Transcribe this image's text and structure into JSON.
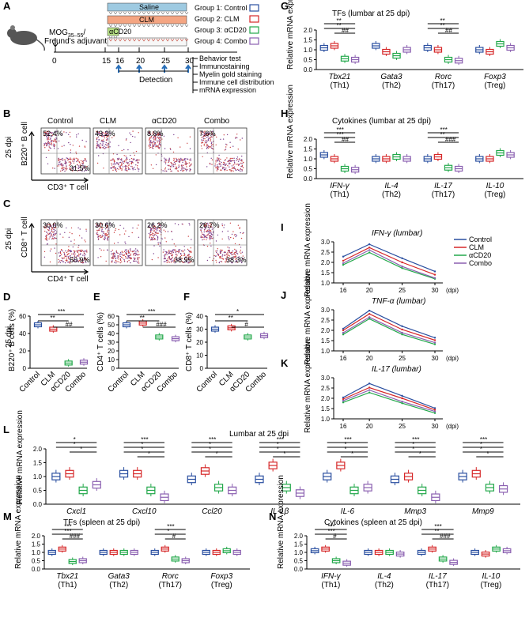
{
  "colors": {
    "Control": "#2a4fa0",
    "CLM": "#d62728",
    "aCD20": "#22a84a",
    "Combo": "#8a5fb0",
    "flow_red": "#c0392b"
  },
  "panels": {
    "A": "A",
    "B": "B",
    "C": "C",
    "D": "D",
    "E": "E",
    "F": "F",
    "G": "G",
    "H": "H",
    "I": "I",
    "J": "J",
    "K": "K",
    "L": "L",
    "M": "M",
    "N": "N"
  },
  "panelA": {
    "induction": "MOG",
    "induction_sub": "35–55",
    "adjuvant": "Freund's adjuvant",
    "days": [
      "0",
      "15",
      "16",
      "20",
      "25",
      "30"
    ],
    "bars": [
      "Saline",
      "CLM",
      "αCD20"
    ],
    "groups": [
      "Group 1: Control",
      "Group 2: CLM",
      "Group 3: αCD20",
      "Group 4: Combo"
    ],
    "detection": "Detection",
    "assays": [
      "Behavior test",
      "Immunostaining",
      "Myelin gold staining",
      "Immune cell distribution",
      "mRNA expression"
    ]
  },
  "flow": {
    "groups": [
      "Control",
      "CLM",
      "αCD20",
      "Combo"
    ],
    "dpi_label": "25 dpi",
    "B": {
      "ylabel": "B220⁺ B cell",
      "xlabel": "CD3⁺ T cell",
      "ul": [
        "52.4%",
        "43.2%",
        "8.8%",
        "7.6%"
      ],
      "lr": [
        "31.5%",
        "",
        "",
        ""
      ]
    },
    "C": {
      "ylabel": "CD8⁺ T cell",
      "xlabel": "CD4⁺ T cell",
      "ul": [
        "30.0%",
        "30.6%",
        "26.2%",
        "26.7%"
      ],
      "lr": [
        "50.9%",
        "",
        "38.9%",
        "38.3%"
      ]
    }
  },
  "chart_data": [
    {
      "id": "D",
      "type": "box",
      "title": "25 dpi",
      "ylabel": "B220⁺ B cells (%)",
      "ylim": [
        0,
        60
      ],
      "yticks": [
        "0",
        "20",
        "40",
        "60"
      ],
      "categories": [
        "Control",
        "CLM",
        "αCD20",
        "Combo"
      ],
      "medians": [
        50,
        45,
        6,
        7
      ],
      "sig": [
        {
          "label": "***",
          "from": 0,
          "to": 3
        },
        {
          "label": "**",
          "from": 0,
          "to": 2
        },
        {
          "label": "##",
          "from": 1,
          "to": 3
        }
      ]
    },
    {
      "id": "E",
      "type": "box",
      "ylabel": "CD4⁺ T cells (%)",
      "ylim": [
        0,
        60
      ],
      "yticks": [
        "0",
        "10",
        "20",
        "30",
        "40",
        "50",
        "60"
      ],
      "categories": [
        "Control",
        "CLM",
        "αCD20",
        "Combo"
      ],
      "medians": [
        50,
        52,
        36,
        34
      ],
      "sig": [
        {
          "label": "***",
          "from": 0,
          "to": 3
        },
        {
          "label": "**",
          "from": 0,
          "to": 2
        },
        {
          "label": "###",
          "from": 1,
          "to": 3
        }
      ]
    },
    {
      "id": "F",
      "type": "box",
      "ylabel": "CD8⁺ T cells (%)",
      "ylim": [
        0,
        40
      ],
      "yticks": [
        "0",
        "10",
        "20",
        "30",
        "40"
      ],
      "categories": [
        "Control",
        "CLM",
        "αCD20",
        "Combo"
      ],
      "medians": [
        30,
        31,
        24,
        25
      ],
      "sig": [
        {
          "label": "*",
          "from": 0,
          "to": 3
        },
        {
          "label": "**",
          "from": 0,
          "to": 2
        },
        {
          "label": "#",
          "from": 1,
          "to": 3
        }
      ]
    },
    {
      "id": "G",
      "type": "grouped-box",
      "title": "TFs (lumbar at 25 dpi)",
      "ylabel": "Relative mRNA expression",
      "ylim": [
        0,
        2.0
      ],
      "yticks": [
        "0.0",
        "0.5",
        "1.0",
        "1.5",
        "2.0"
      ],
      "genes": [
        "Tbx21",
        "Gata3",
        "Rorc",
        "Foxp3"
      ],
      "subs": [
        "(Th1)",
        "(Th2)",
        "(Th17)",
        "(Treg)"
      ],
      "series": [
        {
          "name": "Control",
          "values": [
            1.1,
            1.2,
            1.1,
            1.0
          ]
        },
        {
          "name": "CLM",
          "values": [
            1.2,
            0.9,
            1.0,
            0.9
          ]
        },
        {
          "name": "αCD20",
          "values": [
            0.55,
            0.7,
            0.5,
            1.3
          ]
        },
        {
          "name": "Combo",
          "values": [
            0.5,
            1.0,
            0.45,
            1.1
          ]
        }
      ],
      "sig": [
        {
          "gene": 0,
          "labels": [
            "**",
            "**",
            "##"
          ]
        },
        {
          "gene": 2,
          "labels": [
            "**",
            "**",
            "##"
          ]
        }
      ]
    },
    {
      "id": "H",
      "type": "grouped-box",
      "title": "Cytokines (lumbar at 25 dpi)",
      "ylabel": "Relative mRNA expression",
      "ylim": [
        0,
        2.0
      ],
      "yticks": [
        "0.0",
        "0.5",
        "1.0",
        "1.5",
        "2.0"
      ],
      "genes": [
        "IFN-γ",
        "IL-4",
        "IL-17",
        "IL-10"
      ],
      "subs": [
        "(Th1)",
        "(Th2)",
        "(Th17)",
        "(Treg)"
      ],
      "series": [
        {
          "name": "Control",
          "values": [
            1.2,
            1.0,
            1.0,
            1.0
          ]
        },
        {
          "name": "CLM",
          "values": [
            1.0,
            1.0,
            1.1,
            1.0
          ]
        },
        {
          "name": "αCD20",
          "values": [
            0.5,
            1.1,
            0.55,
            1.3
          ]
        },
        {
          "name": "Combo",
          "values": [
            0.45,
            1.0,
            0.5,
            1.2
          ]
        }
      ],
      "sig": [
        {
          "gene": 0,
          "labels": [
            "***",
            "***",
            "##"
          ]
        },
        {
          "gene": 2,
          "labels": [
            "***",
            "**",
            "###"
          ]
        }
      ]
    },
    {
      "id": "I",
      "type": "line",
      "title": "IFN-γ (lumbar)",
      "ylabel": "Relative mRNA expression",
      "ylim": [
        0.5,
        3.0
      ],
      "yticks": [
        "1.0",
        "1.5",
        "2.0",
        "2.5",
        "3.0"
      ],
      "x": [
        16,
        20,
        25,
        30
      ],
      "xticks": [
        "16",
        "20",
        "25",
        "30"
      ],
      "xunit": "(dpi)",
      "series": [
        {
          "name": "Control",
          "values": [
            2.1,
            2.85,
            2.0,
            1.2
          ]
        },
        {
          "name": "CLM",
          "values": [
            1.85,
            2.65,
            1.75,
            1.0
          ]
        },
        {
          "name": "αCD20",
          "values": [
            1.6,
            2.35,
            1.4,
            0.75
          ]
        },
        {
          "name": "Combo",
          "values": [
            1.7,
            2.5,
            1.5,
            0.8
          ]
        }
      ]
    },
    {
      "id": "J",
      "type": "line",
      "title": "TNF-α (lumbar)",
      "ylabel": "Relative mRNA expression",
      "ylim": [
        0.5,
        3.0
      ],
      "yticks": [
        "1.0",
        "1.5",
        "2.0",
        "2.5",
        "3.0"
      ],
      "x": [
        16,
        20,
        25,
        30
      ],
      "xticks": [
        "16",
        "20",
        "25",
        "30"
      ],
      "xunit": "(dpi)",
      "series": [
        {
          "name": "Control",
          "values": [
            1.85,
            2.95,
            2.0,
            1.3
          ]
        },
        {
          "name": "CLM",
          "values": [
            1.75,
            2.75,
            1.8,
            1.15
          ]
        },
        {
          "name": "αCD20",
          "values": [
            1.5,
            2.45,
            1.5,
            0.9
          ]
        },
        {
          "name": "Combo",
          "values": [
            1.6,
            2.55,
            1.6,
            1.0
          ]
        }
      ]
    },
    {
      "id": "K",
      "type": "line",
      "title": "IL-17 (lumbar)",
      "ylabel": "Relative mRNA expression",
      "ylim": [
        0.5,
        3.0
      ],
      "yticks": [
        "1.0",
        "1.5",
        "2.0",
        "2.5",
        "3.0"
      ],
      "x": [
        16,
        20,
        25,
        30
      ],
      "xticks": [
        "16",
        "20",
        "25",
        "30"
      ],
      "xunit": "(dpi)",
      "series": [
        {
          "name": "Control",
          "values": [
            1.8,
            2.65,
            1.9,
            1.15
          ]
        },
        {
          "name": "CLM",
          "values": [
            1.7,
            2.4,
            1.75,
            1.05
          ]
        },
        {
          "name": "αCD20",
          "values": [
            1.5,
            2.1,
            1.45,
            0.85
          ]
        },
        {
          "name": "Combo",
          "values": [
            1.6,
            2.25,
            1.55,
            0.95
          ]
        }
      ]
    },
    {
      "id": "L",
      "type": "grouped-box",
      "title": "Lumbar at 25 dpi",
      "ylabel": "Relative mRNA expression",
      "ylim": [
        0,
        2.0
      ],
      "yticks": [
        "0.0",
        "0.5",
        "1.0",
        "1.5",
        "2.0"
      ],
      "genes": [
        "Cxcl1",
        "Cxcl10",
        "Ccl20",
        "IL-1β",
        "IL-6",
        "Mmp3",
        "Mmp9"
      ],
      "subs": [],
      "series": [
        {
          "name": "Control",
          "values": [
            1.0,
            1.1,
            0.9,
            0.9,
            1.0,
            0.9,
            1.0
          ]
        },
        {
          "name": "CLM",
          "values": [
            1.1,
            1.1,
            1.2,
            1.4,
            1.4,
            1.0,
            1.1
          ]
        },
        {
          "name": "αCD20",
          "values": [
            0.5,
            0.5,
            0.6,
            0.6,
            0.5,
            0.5,
            0.6
          ]
        },
        {
          "name": "Combo",
          "values": [
            0.7,
            0.25,
            0.5,
            0.4,
            0.6,
            0.25,
            0.55
          ]
        }
      ],
      "sig": [
        {
          "gene": 0,
          "labels": [
            "*",
            "*",
            "*"
          ]
        },
        {
          "gene": 1,
          "labels": [
            "***",
            "*",
            "*",
            "*"
          ]
        },
        {
          "gene": 2,
          "labels": [
            "***",
            "*",
            "*",
            "*"
          ]
        },
        {
          "gene": 3,
          "labels": [
            "***",
            "*",
            "*",
            "*"
          ]
        },
        {
          "gene": 4,
          "labels": [
            "***",
            "*",
            "*",
            "*"
          ]
        },
        {
          "gene": 5,
          "labels": [
            "***",
            "*",
            "*",
            "*"
          ]
        },
        {
          "gene": 6,
          "labels": [
            "***",
            "*",
            "*",
            "*"
          ]
        }
      ]
    },
    {
      "id": "M",
      "type": "grouped-box",
      "title": "TFs (spleen at 25 dpi)",
      "ylabel": "Relative mRNA expression",
      "ylim": [
        0,
        2.0
      ],
      "yticks": [
        "0.0",
        "0.5",
        "1.0",
        "1.5",
        "2.0"
      ],
      "genes": [
        "Tbx21",
        "Gata3",
        "Rorc",
        "Foxp3"
      ],
      "subs": [
        "(Th1)",
        "(Th2)",
        "(Th17)",
        "(Treg)"
      ],
      "series": [
        {
          "name": "Control",
          "values": [
            1.0,
            1.0,
            1.0,
            1.0
          ]
        },
        {
          "name": "CLM",
          "values": [
            1.2,
            1.0,
            1.2,
            1.0
          ]
        },
        {
          "name": "αCD20",
          "values": [
            0.45,
            1.0,
            0.6,
            1.1
          ]
        },
        {
          "name": "Combo",
          "values": [
            0.5,
            1.0,
            0.5,
            1.0
          ]
        }
      ],
      "sig": [
        {
          "gene": 0,
          "labels": [
            "***",
            "***",
            "###"
          ]
        },
        {
          "gene": 2,
          "labels": [
            "***",
            "*",
            "#"
          ]
        }
      ]
    },
    {
      "id": "N",
      "type": "grouped-box",
      "title": "Cytokines  (spleen at 25 dpi)",
      "ylabel": "Relative mRNA expression",
      "ylim": [
        0,
        2.0
      ],
      "yticks": [
        "0.0",
        "0.5",
        "1.0",
        "1.5",
        "2.0"
      ],
      "genes": [
        "IFN-γ",
        "IL-4",
        "IL-17",
        "IL-10"
      ],
      "subs": [
        "(Th1)",
        "(Th2)",
        "(Th17)",
        "(Treg)"
      ],
      "series": [
        {
          "name": "Control",
          "values": [
            1.1,
            1.0,
            1.0,
            1.0
          ]
        },
        {
          "name": "CLM",
          "values": [
            1.2,
            1.0,
            1.2,
            0.9
          ]
        },
        {
          "name": "αCD20",
          "values": [
            0.5,
            1.0,
            0.6,
            1.2
          ]
        },
        {
          "name": "Combo",
          "values": [
            0.35,
            0.9,
            0.4,
            1.1
          ]
        }
      ],
      "sig": [
        {
          "gene": 0,
          "labels": [
            "***",
            "***",
            "#"
          ]
        },
        {
          "gene": 2,
          "labels": [
            "***",
            "**",
            "###"
          ]
        }
      ]
    }
  ],
  "legend": [
    "Control",
    "CLM",
    "αCD20",
    "Combo"
  ]
}
